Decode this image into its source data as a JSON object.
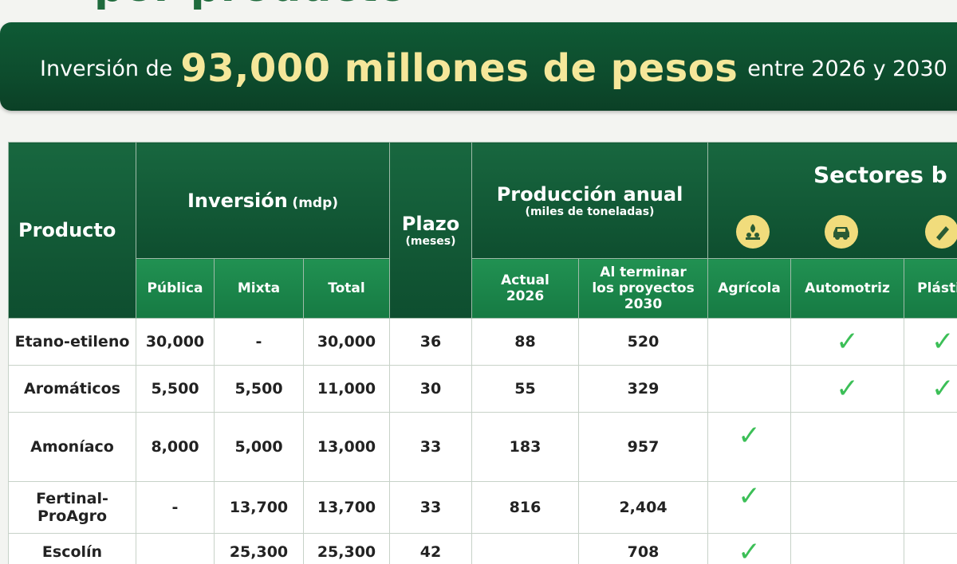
{
  "heading_fragment": "por producto",
  "banner": {
    "prefix": "Inversión de",
    "amount": "93,000 millones de pesos",
    "suffix": "entre 2026 y 2030"
  },
  "table": {
    "headers": {
      "producto": "Producto",
      "inversion": "Inversión",
      "inversion_unit": "(mdp)",
      "plazo": "Plazo",
      "plazo_unit": "(meses)",
      "produccion": "Producción anual",
      "produccion_unit": "(miles de toneladas)",
      "sectores": "Sectores b",
      "publica": "Pública",
      "mixta": "Mixta",
      "total": "Total",
      "actual_line1": "Actual",
      "actual_line2": "2026",
      "terminar_line1": "Al terminar",
      "terminar_line2": "los proyectos",
      "terminar_line3": "2030",
      "agricola": "Agrícola",
      "automotriz": "Automotriz",
      "plasticos": "Plásti"
    },
    "sector_icons": [
      "agriculture-icon",
      "car-icon",
      "plastic-icon"
    ],
    "rows": [
      {
        "producto": "Etano-etileno",
        "publica": "30,000",
        "mixta": "-",
        "total": "30,000",
        "plazo": "36",
        "actual": "88",
        "terminar": "520",
        "agricola": "",
        "automotriz": "✓",
        "plasticos": "✓"
      },
      {
        "producto": "Aromáticos",
        "publica": "5,500",
        "mixta": "5,500",
        "total": "11,000",
        "plazo": "30",
        "actual": "55",
        "terminar": "329",
        "agricola": "",
        "automotriz": "✓",
        "plasticos": "✓"
      },
      {
        "producto": "Amoníaco",
        "publica": "8,000",
        "mixta": "5,000",
        "total": "13,000",
        "plazo": "33",
        "actual": "183",
        "terminar": "957",
        "agricola": "✓",
        "automotriz": "",
        "plasticos": ""
      },
      {
        "producto_line1": "Fertinal-",
        "producto_line2": "ProAgro",
        "publica": "-",
        "mixta": "13,700",
        "total": "13,700",
        "plazo": "33",
        "actual": "816",
        "terminar": "2,404",
        "agricola": "✓",
        "automotriz": "",
        "plasticos": ""
      },
      {
        "producto": "Escolín",
        "publica": "",
        "mixta": "25,300",
        "total": "25,300",
        "plazo": "42",
        "actual": "",
        "terminar": "708",
        "agricola": "✓",
        "automotriz": "",
        "plasticos": ""
      }
    ]
  },
  "colors": {
    "banner_green": "#0d4c2d",
    "header_green": "#0e4e2f",
    "subheader_green": "#167a43",
    "highlight_yellow": "#f5e79a",
    "icon_circle": "#f1dc7c",
    "check_green": "#3cbf57"
  }
}
